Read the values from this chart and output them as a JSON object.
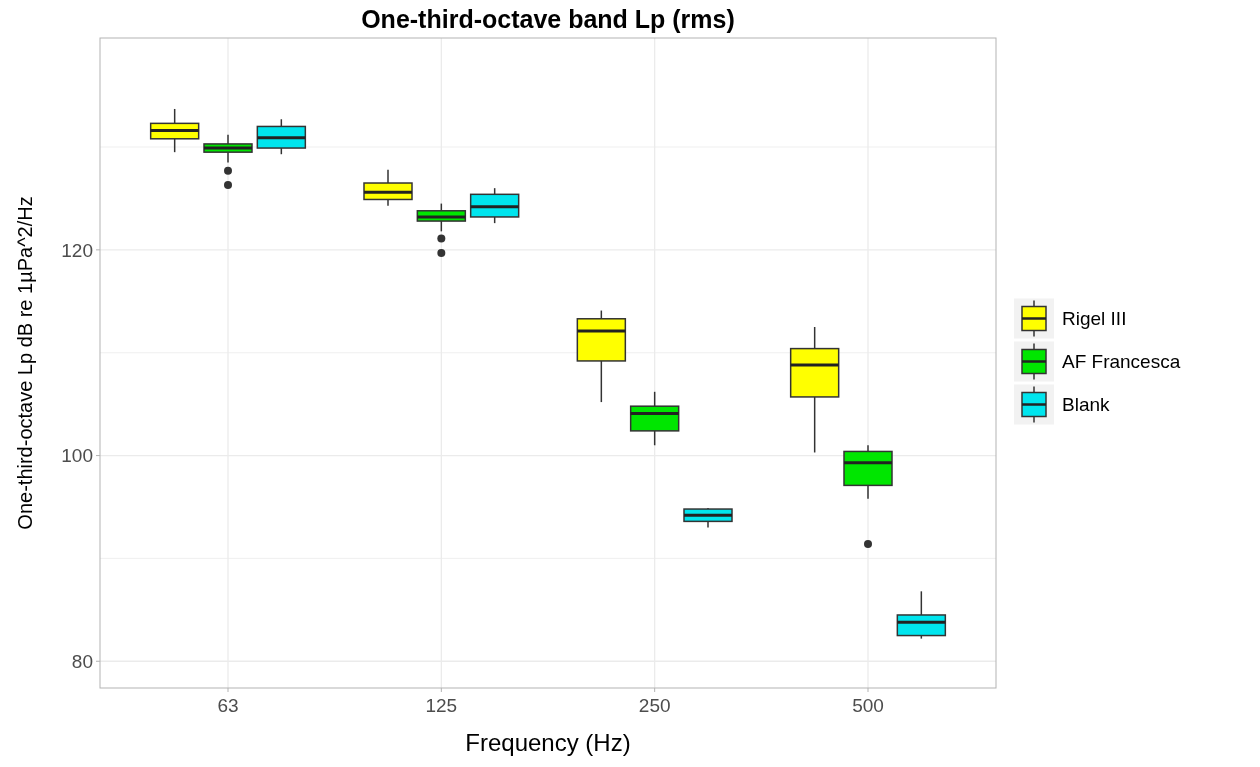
{
  "chart_data": {
    "type": "box",
    "title": "One-third-octave band Lp (rms)",
    "xlabel": "Frequency (Hz)",
    "ylabel": "One-third-octave Lp dB re 1µPa^2/Hz",
    "categories": [
      "63",
      "125",
      "250",
      "500"
    ],
    "ylim": [
      77.4,
      140.6
    ],
    "yticks": [
      80,
      {
        "value": 90,
        "label": null
      },
      100,
      {
        "value": 110,
        "label": null
      },
      120,
      {
        "value": 130,
        "label": null
      }
    ],
    "grid": true,
    "legend": "right",
    "series": [
      {
        "name": "Rigel III",
        "color": "#ffff00",
        "boxes": [
          {
            "low": 129.5,
            "q1": 130.8,
            "median": 131.6,
            "q3": 132.3,
            "high": 133.7
          },
          {
            "low": 124.3,
            "q1": 124.9,
            "median": 125.6,
            "q3": 126.5,
            "high": 127.8
          },
          {
            "low": 105.2,
            "q1": 109.2,
            "median": 112.1,
            "q3": 113.3,
            "high": 114.1
          },
          {
            "low": 100.3,
            "q1": 105.7,
            "median": 108.8,
            "q3": 110.4,
            "high": 112.5
          }
        ]
      },
      {
        "name": "AF Francesca",
        "color": "#00e600",
        "boxes": [
          {
            "low": 128.5,
            "q1": 129.5,
            "median": 129.9,
            "q3": 130.3,
            "high": 131.2,
            "outliers": [
              127.7,
              126.3
            ]
          },
          {
            "low": 121.8,
            "q1": 122.8,
            "median": 123.2,
            "q3": 123.8,
            "high": 124.5,
            "outliers": [
              121.1,
              119.7
            ]
          },
          {
            "low": 101.0,
            "q1": 102.4,
            "median": 104.1,
            "q3": 104.8,
            "high": 106.2
          },
          {
            "low": 95.8,
            "q1": 97.1,
            "median": 99.3,
            "q3": 100.4,
            "high": 101.0,
            "outliers": [
              91.4
            ]
          }
        ]
      },
      {
        "name": "Blank",
        "color": "#00e5ee",
        "boxes": [
          {
            "low": 129.3,
            "q1": 129.9,
            "median": 130.9,
            "q3": 132.0,
            "high": 132.7
          },
          {
            "low": 122.6,
            "q1": 123.2,
            "median": 124.2,
            "q3": 125.4,
            "high": 126.0
          },
          {
            "low": 93.0,
            "q1": 93.6,
            "median": 94.2,
            "q3": 94.8,
            "high": 94.9
          },
          {
            "low": 82.2,
            "q1": 82.5,
            "median": 83.8,
            "q3": 84.5,
            "high": 86.8
          }
        ]
      }
    ]
  }
}
